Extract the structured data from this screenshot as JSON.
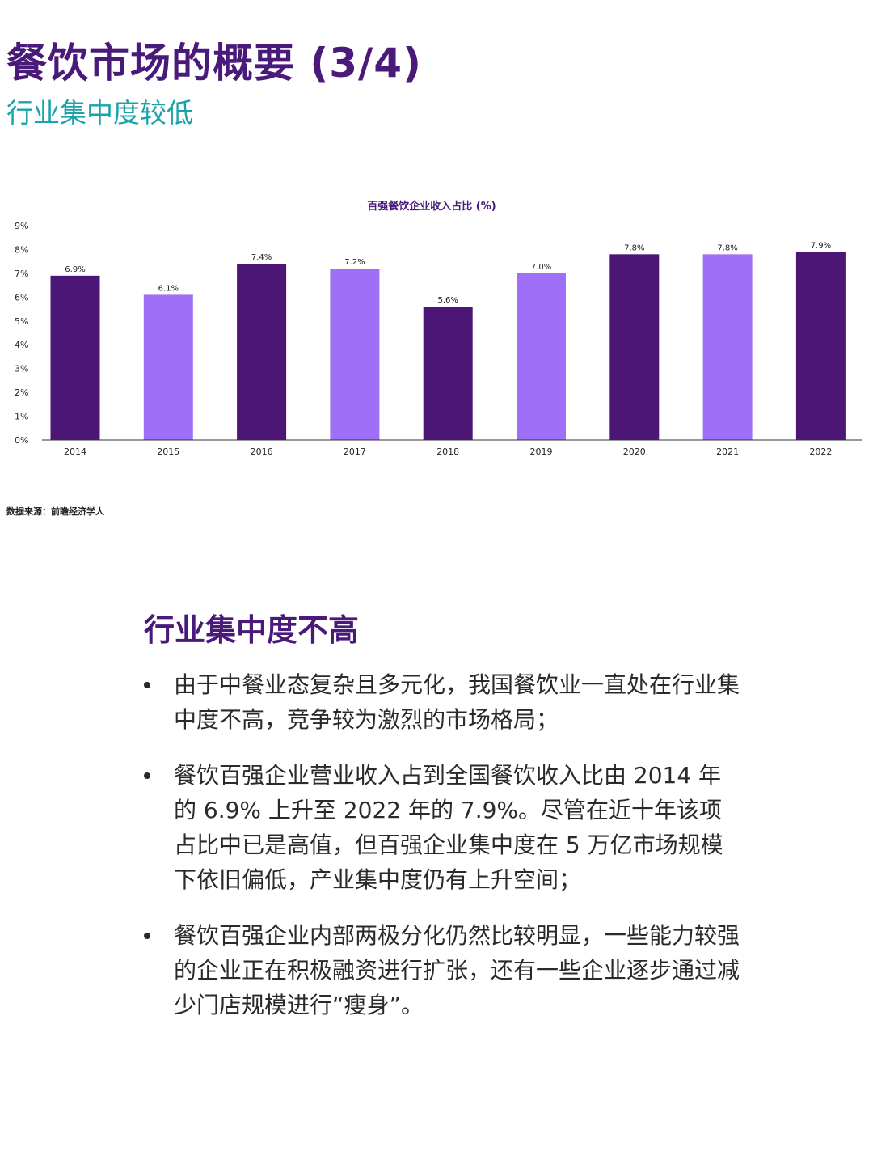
{
  "header": {
    "title": "餐饮市场的概要 (3/4)",
    "subtitle": "行业集中度较低"
  },
  "colors": {
    "title": "#4a1a7a",
    "subtitle": "#1aa3a8",
    "bar_dark": "#4b1676",
    "bar_light": "#a06ff8"
  },
  "chart_data": {
    "type": "bar",
    "title": "百强餐饮企业收入占比 (%)",
    "categories": [
      "2014",
      "2015",
      "2016",
      "2017",
      "2018",
      "2019",
      "2020",
      "2021",
      "2022"
    ],
    "values": [
      6.9,
      6.1,
      7.4,
      7.2,
      5.6,
      7.0,
      7.8,
      7.8,
      7.9
    ],
    "data_labels": [
      "6.9%",
      "6.1%",
      "7.4%",
      "7.2%",
      "5.6%",
      "7.0%",
      "7.8%",
      "7.8%",
      "7.9%"
    ],
    "bar_colors": [
      "#4b1676",
      "#a06ff8",
      "#4b1676",
      "#a06ff8",
      "#4b1676",
      "#a06ff8",
      "#4b1676",
      "#a06ff8",
      "#4b1676"
    ],
    "y_ticks": [
      "0%",
      "1%",
      "2%",
      "3%",
      "4%",
      "5%",
      "6%",
      "7%",
      "8%",
      "9%"
    ],
    "ylim": [
      0,
      9
    ],
    "xlabel": "",
    "ylabel": "",
    "grid": false,
    "legend": "none"
  },
  "source_note": "数据来源：前瞻经济学人",
  "section": {
    "heading": "行业集中度不高",
    "bullets": [
      "由于中餐业态复杂且多元化，我国餐饮业一直处在行业集中度不高，竞争较为激烈的市场格局；",
      "餐饮百强企业营业收入占到全国餐饮收入比由 2014 年的 6.9% 上升至 2022 年的 7.9%。尽管在近十年该项占比中已是高值，但百强企业集中度在 5 万亿市场规模下依旧偏低，产业集中度仍有上升空间；",
      "餐饮百强企业内部两极分化仍然比较明显，一些能力较强的企业正在积极融资进行扩张，还有一些企业逐步通过减少门店规模进行“瘦身”。"
    ]
  }
}
